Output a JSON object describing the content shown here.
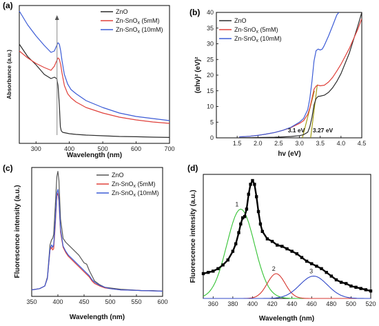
{
  "chart_data": [
    {
      "panel": "(a)",
      "type": "line",
      "xlabel": "Wavelength (nm)",
      "ylabel": "Absorbance (a.u.)",
      "xlim": [
        250,
        700
      ],
      "ylim": [
        0,
        1
      ],
      "xticks": [
        "300",
        "400",
        "500",
        "600",
        "700"
      ],
      "yticks_shown": false,
      "legend_position": "top-right",
      "series": [
        {
          "name": "ZnO",
          "color": "#2b2b2b",
          "x": [
            250,
            275,
            300,
            325,
            345,
            355,
            362,
            366,
            370,
            373,
            376,
            380,
            390,
            400,
            420,
            450,
            500,
            550,
            600,
            650,
            700
          ],
          "y": [
            0.72,
            0.63,
            0.57,
            0.5,
            0.47,
            0.48,
            0.47,
            0.42,
            0.28,
            0.12,
            0.09,
            0.08,
            0.075,
            0.07,
            0.065,
            0.06,
            0.055,
            0.05,
            0.048,
            0.045,
            0.043
          ]
        },
        {
          "name": "Zn-SnOx (5mM)",
          "color": "#e0403a",
          "x": [
            250,
            275,
            300,
            325,
            345,
            355,
            362,
            366,
            370,
            374,
            378,
            385,
            395,
            405,
            420,
            450,
            500,
            550,
            600,
            650,
            700
          ],
          "y": [
            0.67,
            0.62,
            0.58,
            0.55,
            0.53,
            0.56,
            0.6,
            0.62,
            0.61,
            0.57,
            0.51,
            0.42,
            0.36,
            0.33,
            0.3,
            0.26,
            0.22,
            0.19,
            0.17,
            0.155,
            0.145
          ]
        },
        {
          "name": "Zn-SnOx (10mM)",
          "color": "#3b5bd6",
          "x": [
            250,
            275,
            300,
            325,
            345,
            355,
            362,
            366,
            370,
            374,
            378,
            385,
            395,
            405,
            420,
            450,
            500,
            550,
            600,
            650,
            700
          ],
          "y": [
            0.96,
            0.86,
            0.78,
            0.71,
            0.66,
            0.67,
            0.71,
            0.73,
            0.72,
            0.67,
            0.6,
            0.5,
            0.43,
            0.39,
            0.36,
            0.31,
            0.26,
            0.22,
            0.195,
            0.18,
            0.165
          ]
        }
      ],
      "annotations": [
        {
          "type": "vertical-arrow",
          "x": 363,
          "y_from": 0.06,
          "y_to": 0.93
        }
      ]
    },
    {
      "panel": "(b)",
      "type": "line",
      "xlabel": "hv (eV)",
      "ylabel": "(αhv)² (eV)²",
      "xlim": [
        1.0,
        4.5
      ],
      "ylim": [
        0,
        40
      ],
      "xticks": [
        "1.5",
        "2.0",
        "2.5",
        "3.0",
        "3.5",
        "4.0",
        "4.5"
      ],
      "yticks": [
        "0",
        "5",
        "10",
        "15",
        "20",
        "25",
        "30",
        "35",
        "40"
      ],
      "legend_position": "top-left",
      "series": [
        {
          "name": "ZnO",
          "color": "#2b2b2b",
          "x": [
            1.55,
            1.8,
            2.0,
            2.2,
            2.4,
            2.6,
            2.8,
            3.0,
            3.1,
            3.2,
            3.25,
            3.3,
            3.35,
            3.4,
            3.45,
            3.5,
            3.6,
            3.7,
            3.8,
            3.9,
            4.0,
            4.2,
            4.4,
            4.5
          ],
          "y": [
            0.05,
            0.07,
            0.1,
            0.15,
            0.2,
            0.3,
            0.45,
            0.7,
            1.0,
            1.8,
            3.5,
            6.5,
            10.5,
            12.5,
            13.2,
            13.3,
            13.6,
            14.5,
            16.0,
            18.0,
            20.5,
            27.0,
            35.5,
            40
          ]
        },
        {
          "name": "Zn-SnOx (5mM)",
          "color": "#e0403a",
          "x": [
            1.55,
            1.8,
            2.0,
            2.2,
            2.4,
            2.6,
            2.8,
            3.0,
            3.1,
            3.2,
            3.25,
            3.3,
            3.35,
            3.4,
            3.45,
            3.5,
            3.6,
            3.7,
            3.8,
            3.9,
            4.0,
            4.2,
            4.4,
            4.5
          ],
          "y": [
            0.3,
            0.5,
            0.8,
            1.2,
            1.7,
            2.4,
            3.3,
            4.6,
            5.5,
            7.5,
            9.5,
            12.5,
            15.5,
            16.5,
            16.8,
            16.6,
            16.8,
            17.8,
            19.3,
            21.3,
            23.5,
            28.5,
            34.5,
            38
          ]
        },
        {
          "name": "Zn-SnOx (10mM)",
          "color": "#3b5bd6",
          "x": [
            1.55,
            1.8,
            2.0,
            2.2,
            2.4,
            2.6,
            2.8,
            3.0,
            3.1,
            3.2,
            3.25,
            3.3,
            3.35,
            3.4,
            3.45,
            3.5,
            3.55,
            3.6,
            3.7,
            3.8,
            3.9,
            3.95
          ],
          "y": [
            0.3,
            0.5,
            0.8,
            1.2,
            1.7,
            2.4,
            3.4,
            5.0,
            6.2,
            9.0,
            12.5,
            18.0,
            24.5,
            27.8,
            28.3,
            28.0,
            28.3,
            29.5,
            32.5,
            35.8,
            39.2,
            40
          ]
        }
      ],
      "tangent_lines": [
        {
          "color": "#9a9400",
          "x": [
            3.07,
            3.36
          ],
          "y": [
            0,
            15
          ]
        },
        {
          "color": "#9a9400",
          "x": [
            3.27,
            3.43
          ],
          "y": [
            0,
            17
          ]
        }
      ],
      "annotations": [
        {
          "text": "3.1 eV",
          "x": 2.72,
          "y": 1.8
        },
        {
          "text": "3.27 eV",
          "x": 3.32,
          "y": 1.8
        }
      ]
    },
    {
      "panel": "(c)",
      "type": "line",
      "xlabel": "Wavelength (nm)",
      "ylabel": "Fluorescence intensity (a.u.)",
      "xlim": [
        350,
        600
      ],
      "ylim": [
        0,
        1
      ],
      "xticks": [
        "350",
        "400",
        "450",
        "500",
        "550",
        "600"
      ],
      "yticks_shown": false,
      "legend_position": "top-right",
      "series": [
        {
          "name": "ZnO",
          "color": "#555555",
          "x": [
            350,
            365,
            375,
            380,
            385,
            388,
            390,
            392,
            395,
            398,
            400,
            402,
            405,
            410,
            415,
            420,
            430,
            440,
            450,
            455,
            460,
            465,
            470,
            480,
            490,
            500,
            520,
            540,
            560,
            580,
            600
          ],
          "y": [
            0.05,
            0.06,
            0.08,
            0.15,
            0.4,
            0.44,
            0.45,
            0.48,
            0.7,
            0.93,
            0.97,
            0.9,
            0.6,
            0.45,
            0.42,
            0.4,
            0.36,
            0.32,
            0.26,
            0.25,
            0.2,
            0.16,
            0.12,
            0.09,
            0.07,
            0.065,
            0.055,
            0.05,
            0.045,
            0.045,
            0.04
          ]
        },
        {
          "name": "Zn-SnOx (5mM)",
          "color": "#e0403a",
          "x": [
            350,
            365,
            375,
            380,
            385,
            388,
            390,
            392,
            395,
            398,
            400,
            402,
            405,
            410,
            415,
            420,
            430,
            440,
            450,
            455,
            460,
            465,
            470,
            480,
            490,
            500,
            520,
            540,
            560,
            580,
            600
          ],
          "y": [
            0.05,
            0.06,
            0.08,
            0.14,
            0.36,
            0.38,
            0.36,
            0.37,
            0.55,
            0.78,
            0.8,
            0.74,
            0.5,
            0.38,
            0.34,
            0.31,
            0.27,
            0.23,
            0.19,
            0.17,
            0.15,
            0.12,
            0.1,
            0.08,
            0.065,
            0.06,
            0.05,
            0.048,
            0.045,
            0.043,
            0.04
          ]
        },
        {
          "name": "Zn-SnOx (10mM)",
          "color": "#3b5bd6",
          "x": [
            350,
            365,
            375,
            380,
            385,
            388,
            390,
            392,
            395,
            398,
            400,
            402,
            405,
            410,
            415,
            420,
            430,
            440,
            450,
            455,
            460,
            465,
            470,
            480,
            490,
            500,
            520,
            540,
            560,
            580,
            600
          ],
          "y": [
            0.05,
            0.06,
            0.08,
            0.14,
            0.37,
            0.4,
            0.38,
            0.4,
            0.58,
            0.8,
            0.83,
            0.76,
            0.52,
            0.39,
            0.35,
            0.32,
            0.28,
            0.24,
            0.2,
            0.18,
            0.16,
            0.13,
            0.11,
            0.085,
            0.07,
            0.06,
            0.05,
            0.048,
            0.045,
            0.043,
            0.04
          ]
        }
      ]
    },
    {
      "panel": "(d)",
      "type": "scatter",
      "xlabel": "Wavelength (nm)",
      "ylabel": "Fluorescence intensity (a.u.)",
      "xlim": [
        350,
        520
      ],
      "ylim": [
        0,
        1
      ],
      "xticks": [
        "360",
        "380",
        "400",
        "420",
        "440",
        "460",
        "480",
        "500",
        "520"
      ],
      "yticks_shown": false,
      "measured": {
        "color": "#000000",
        "x": [
          350,
          355,
          360,
          365,
          370,
          375,
          380,
          383,
          386,
          388,
          390,
          392,
          394,
          396,
          398,
          400,
          402,
          404,
          406,
          408,
          410,
          415,
          420,
          425,
          430,
          435,
          440,
          445,
          450,
          455,
          460,
          465,
          470,
          475,
          480,
          485,
          490,
          495,
          500,
          505,
          510,
          515,
          520
        ],
        "y": [
          0.2,
          0.21,
          0.22,
          0.24,
          0.27,
          0.31,
          0.38,
          0.44,
          0.53,
          0.6,
          0.65,
          0.66,
          0.72,
          0.84,
          0.92,
          0.95,
          0.92,
          0.82,
          0.7,
          0.6,
          0.54,
          0.48,
          0.46,
          0.43,
          0.42,
          0.4,
          0.38,
          0.36,
          0.33,
          0.3,
          0.28,
          0.26,
          0.24,
          0.21,
          0.18,
          0.15,
          0.13,
          0.12,
          0.1,
          0.09,
          0.08,
          0.07,
          0.06
        ]
      },
      "peaks": [
        {
          "label": "1",
          "color": "#33c233",
          "center": 388,
          "sigma": 14,
          "amplitude": 0.72
        },
        {
          "label": "2",
          "color": "#d6362f",
          "center": 424,
          "sigma": 9,
          "amplitude": 0.2
        },
        {
          "label": "3",
          "color": "#3048c8",
          "center": 462,
          "sigma": 14,
          "amplitude": 0.18
        }
      ]
    }
  ],
  "panels": {
    "a": {
      "label": "(a)",
      "legend": [
        {
          "base": "ZnO",
          "sub": "",
          "suffix": ""
        },
        {
          "base": "Zn-SnO",
          "sub": "x",
          "suffix": " (5mM)"
        },
        {
          "base": "Zn-SnO",
          "sub": "x",
          "suffix": " (10mM)"
        }
      ]
    },
    "b": {
      "label": "(b)",
      "legend": [
        {
          "base": "ZnO",
          "sub": "",
          "suffix": ""
        },
        {
          "base": "Zn-SnO",
          "sub": "x",
          "suffix": " (5mM)"
        },
        {
          "base": "Zn-SnO",
          "sub": "x",
          "suffix": " (10mM)"
        }
      ]
    },
    "c": {
      "label": "(c)",
      "legend": [
        {
          "base": "ZnO",
          "sub": "",
          "suffix": ""
        },
        {
          "base": "Zn-SnO",
          "sub": "x",
          "suffix": " (5mM)"
        },
        {
          "base": "Zn-SnO",
          "sub": "x",
          "suffix": " (10mM)"
        }
      ]
    },
    "d": {
      "label": "(d)"
    }
  }
}
